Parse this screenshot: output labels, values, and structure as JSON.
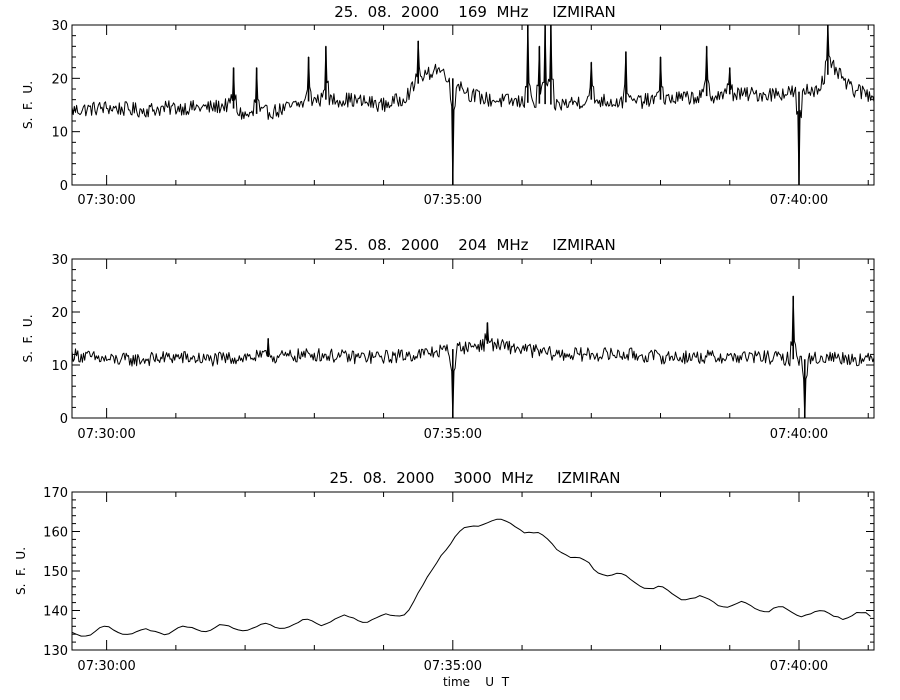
{
  "chart_data": [
    {
      "type": "line",
      "title": "25.  08.  2000    169  MHz     IZMIRAN",
      "ylabel": "S.  F.  U.",
      "xlabel": "",
      "ylim": [
        0,
        30
      ],
      "yticks": [
        0,
        10,
        20,
        30
      ],
      "xlim": [
        "07:29:30",
        "07:41:05"
      ],
      "xticks": [
        "07:30:00",
        "07:35:00",
        "07:40:00"
      ],
      "grid": false,
      "series": [
        {
          "x": [
            "07:29:30",
            "07:30:00",
            "07:30:30",
            "07:31:00",
            "07:31:30",
            "07:31:45",
            "07:32:00",
            "07:32:30",
            "07:33:00",
            "07:33:30",
            "07:34:00",
            "07:34:15",
            "07:34:30",
            "07:34:45",
            "07:35:00",
            "07:35:15",
            "07:35:30",
            "07:36:00",
            "07:36:30",
            "07:37:00",
            "07:37:30",
            "07:38:00",
            "07:38:30",
            "07:39:00",
            "07:39:30",
            "07:40:00",
            "07:40:15",
            "07:40:30",
            "07:40:45",
            "07:41:00"
          ],
          "y": [
            14,
            14.5,
            14,
            14.5,
            14.5,
            15,
            13,
            14,
            16,
            16,
            15,
            16,
            19,
            22,
            20,
            17,
            16,
            15.5,
            15,
            16,
            15.5,
            16,
            16.5,
            17,
            17,
            17.5,
            18,
            22,
            18,
            17
          ],
          "spikes": [
            {
              "x": "07:31:50",
              "y": 22
            },
            {
              "x": "07:32:10",
              "y": 22
            },
            {
              "x": "07:32:55",
              "y": 24
            },
            {
              "x": "07:33:10",
              "y": 26
            },
            {
              "x": "07:34:30",
              "y": 27
            },
            {
              "x": "07:35:00",
              "y": 0
            },
            {
              "x": "07:36:05",
              "y": 30
            },
            {
              "x": "07:36:15",
              "y": 26
            },
            {
              "x": "07:36:20",
              "y": 30
            },
            {
              "x": "07:36:25",
              "y": 30
            },
            {
              "x": "07:37:00",
              "y": 23
            },
            {
              "x": "07:37:30",
              "y": 25
            },
            {
              "x": "07:38:00",
              "y": 24
            },
            {
              "x": "07:38:40",
              "y": 26
            },
            {
              "x": "07:39:00",
              "y": 22
            },
            {
              "x": "07:40:00",
              "y": 0
            },
            {
              "x": "07:40:25",
              "y": 30
            }
          ]
        }
      ]
    },
    {
      "type": "line",
      "title": "25.  08.  2000    204  MHz     IZMIRAN",
      "ylabel": "S.  F.  U.",
      "xlabel": "",
      "ylim": [
        0,
        30
      ],
      "yticks": [
        0,
        10,
        20,
        30
      ],
      "xlim": [
        "07:29:30",
        "07:41:05"
      ],
      "xticks": [
        "07:30:00",
        "07:35:00",
        "07:40:00"
      ],
      "grid": false,
      "series": [
        {
          "x": [
            "07:29:30",
            "07:30:00",
            "07:30:30",
            "07:31:00",
            "07:31:30",
            "07:32:00",
            "07:32:30",
            "07:33:00",
            "07:33:30",
            "07:34:00",
            "07:34:30",
            "07:35:00",
            "07:35:30",
            "07:36:00",
            "07:36:30",
            "07:37:00",
            "07:37:30",
            "07:38:00",
            "07:38:30",
            "07:39:00",
            "07:39:30",
            "07:40:00",
            "07:40:30",
            "07:41:00"
          ],
          "y": [
            12,
            11,
            11,
            11.5,
            11,
            11.5,
            11.5,
            12,
            11.5,
            11.5,
            12,
            13,
            14,
            13,
            12,
            12,
            12,
            11.5,
            11.5,
            11.5,
            11.5,
            11,
            11.5,
            11
          ],
          "spikes": [
            {
              "x": "07:32:20",
              "y": 15
            },
            {
              "x": "07:35:00",
              "y": 0
            },
            {
              "x": "07:35:30",
              "y": 18
            },
            {
              "x": "07:39:55",
              "y": 23
            },
            {
              "x": "07:40:05",
              "y": 0
            }
          ]
        }
      ]
    },
    {
      "type": "line",
      "title": "25.  08.  2000    3000  MHz     IZMIRAN",
      "ylabel": "S.  F.  U.",
      "xlabel": "time    U  T",
      "ylim": [
        130,
        170
      ],
      "yticks": [
        130,
        140,
        150,
        160,
        170
      ],
      "xlim": [
        "07:29:30",
        "07:41:05"
      ],
      "xticks": [
        "07:30:00",
        "07:35:00",
        "07:40:00"
      ],
      "grid": false,
      "series": [
        {
          "x": [
            "07:29:30",
            "07:30:00",
            "07:30:30",
            "07:31:00",
            "07:31:30",
            "07:32:00",
            "07:32:30",
            "07:33:00",
            "07:33:30",
            "07:34:00",
            "07:34:20",
            "07:34:35",
            "07:34:50",
            "07:35:00",
            "07:35:15",
            "07:35:30",
            "07:35:45",
            "07:36:00",
            "07:36:15",
            "07:36:30",
            "07:37:00",
            "07:37:30",
            "07:38:00",
            "07:38:30",
            "07:39:00",
            "07:39:30",
            "07:40:00",
            "07:40:30",
            "07:41:00"
          ],
          "y": [
            134,
            135,
            134.5,
            135,
            135.5,
            135.5,
            136,
            137,
            138,
            138,
            140,
            146,
            155,
            158,
            161,
            163,
            162,
            161,
            159,
            156,
            151,
            148,
            145,
            143,
            141.5,
            140.5,
            139.5,
            139,
            138.5
          ]
        }
      ]
    }
  ]
}
